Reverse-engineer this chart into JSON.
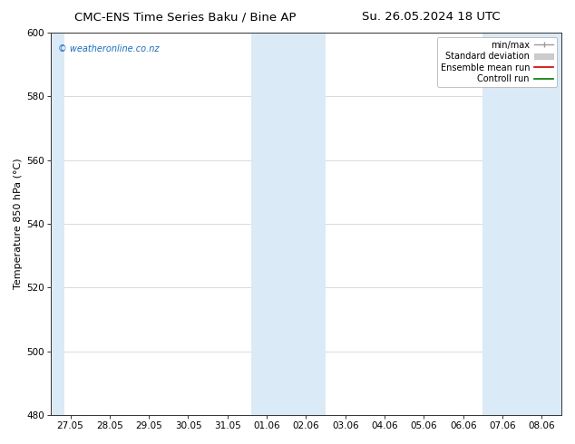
{
  "title_left": "CMC-ENS Time Series Baku / Bine AP",
  "title_right": "Su. 26.05.2024 18 UTC",
  "ylabel": "Temperature 850 hPa (°C)",
  "xlim_dates": [
    "27.05",
    "28.05",
    "29.05",
    "30.05",
    "31.05",
    "01.06",
    "02.06",
    "03.06",
    "04.06",
    "05.06",
    "06.06",
    "07.06",
    "08.06"
  ],
  "ylim": [
    480,
    600
  ],
  "yticks": [
    480,
    500,
    520,
    540,
    560,
    580,
    600
  ],
  "background_color": "#ffffff",
  "plot_bg_color": "#ffffff",
  "shade_color": "#daeaf7",
  "watermark_text": "© weatheronline.co.nz",
  "watermark_color": "#1a6bbf",
  "title_fontsize": 9.5,
  "axis_fontsize": 8,
  "tick_fontsize": 7.5,
  "legend_fontsize": 7.0
}
